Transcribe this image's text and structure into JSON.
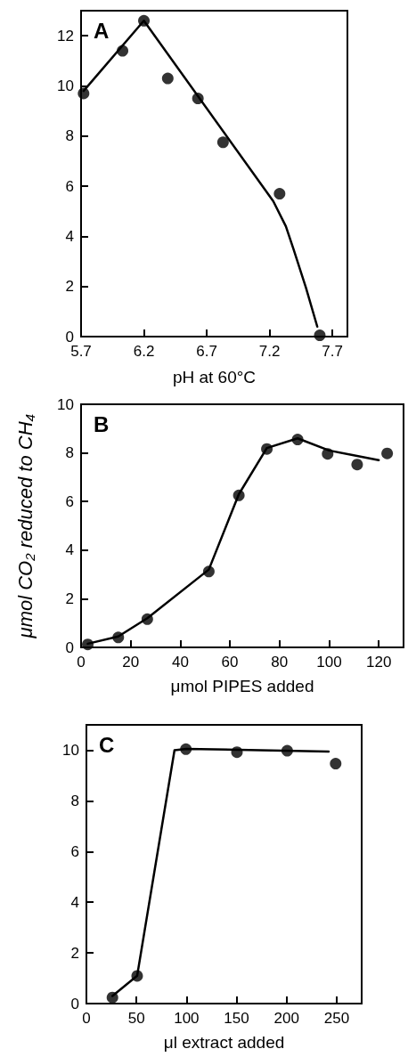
{
  "chart_data": [
    {
      "type": "scatter",
      "annotations": [
        "A"
      ],
      "xlabel": "pH at 60°C",
      "xlim": [
        5.7,
        7.82
      ],
      "ylim": [
        0,
        13
      ],
      "xticks": [
        5.7,
        6.2,
        6.7,
        7.2,
        7.7
      ],
      "yticks": [
        0,
        2,
        4,
        6,
        8,
        10,
        12
      ],
      "grid": false,
      "series": [
        {
          "marker": "circle",
          "color": "#000000",
          "x": [
            5.72,
            6.03,
            6.2,
            6.39,
            6.63,
            6.83,
            7.28,
            7.6
          ],
          "values": [
            9.7,
            11.4,
            12.6,
            10.3,
            9.5,
            7.75,
            5.7,
            0.05
          ]
        },
        {
          "type": "line",
          "marker": "none",
          "color": "#000000",
          "line_style": "solid",
          "x": [
            5.72,
            6.2,
            7.23,
            7.33,
            7.39,
            7.49,
            7.58
          ],
          "values": [
            9.8,
            12.6,
            5.4,
            4.4,
            3.5,
            1.95,
            0.4
          ]
        }
      ]
    },
    {
      "type": "scatter",
      "annotations": [
        "B"
      ],
      "xlabel": "μmol PIPES added",
      "ylabel": "μmol CO₂ reduced to CH₄",
      "xlim": [
        0,
        130
      ],
      "ylim": [
        0,
        10
      ],
      "xticks": [
        0,
        20,
        40,
        60,
        80,
        100,
        120
      ],
      "yticks": [
        0,
        2,
        4,
        6,
        8,
        10
      ],
      "grid": false,
      "series": [
        {
          "marker": "circle",
          "color": "#000000",
          "x": [
            2.7,
            15,
            26.7,
            51.5,
            63.6,
            74.9,
            87.3,
            99.4,
            111.3,
            123.4
          ],
          "values": [
            0.12,
            0.41,
            1.16,
            3.12,
            6.25,
            8.16,
            8.55,
            7.96,
            7.52,
            7.98
          ]
        },
        {
          "type": "line",
          "marker": "none",
          "color": "#000000",
          "line_style": "solid",
          "x": [
            2.7,
            15,
            26.7,
            51.5,
            63.6,
            74.9,
            87.3,
            100,
            120
          ],
          "values": [
            0.15,
            0.45,
            1.2,
            3.2,
            6.3,
            8.2,
            8.6,
            8.1,
            7.7
          ]
        }
      ]
    },
    {
      "type": "scatter",
      "annotations": [
        "C"
      ],
      "xlabel": "μl extract added",
      "xlim": [
        0,
        275
      ],
      "ylim": [
        0,
        11
      ],
      "xticks": [
        0,
        50,
        100,
        150,
        200,
        250
      ],
      "yticks": [
        0,
        2,
        4,
        6,
        8,
        10
      ],
      "grid": false,
      "series": [
        {
          "marker": "circle",
          "color": "#000000",
          "x": [
            26,
            50.7,
            99.4,
            150.4,
            200.6,
            249
          ],
          "values": [
            0.24,
            1.09,
            10.04,
            9.92,
            9.98,
            9.47
          ]
        },
        {
          "type": "line",
          "marker": "none",
          "color": "#000000",
          "line_style": "solid",
          "x": [
            26,
            50.7,
            88,
            100,
            242
          ],
          "values": [
            0.3,
            1.1,
            10,
            10.05,
            9.95
          ]
        }
      ]
    }
  ]
}
